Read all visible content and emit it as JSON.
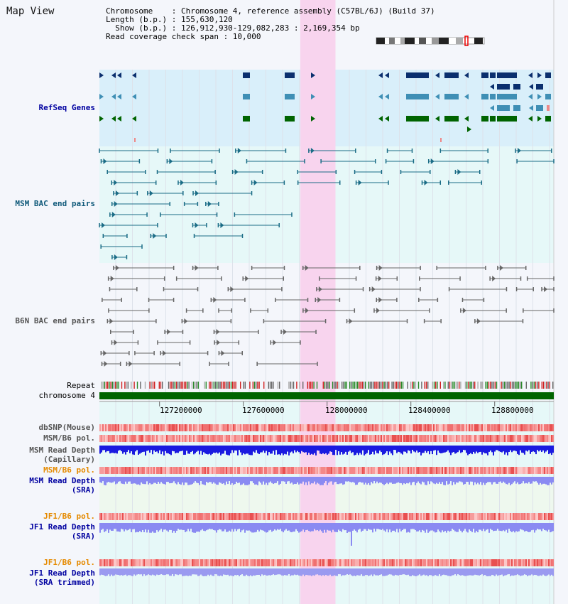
{
  "page": {
    "title": "Map View"
  },
  "info": {
    "line1": "Chromosome    : Chromosome 4, reference assembly (C57BL/6J) (Build 37)",
    "line2": "Length (b.p.) : 155,630,120",
    "line3": "  Show (b.p.) : 126,912,930-129,082,283 : 2,169,354 bp",
    "line4": "Read coverage check span : 10,000"
  },
  "view": {
    "start": 126912930,
    "end": 129082283,
    "highlight_start": 127872000,
    "highlight_end": 128040000
  },
  "tracks": {
    "refseq": "RefSeq Genes",
    "msm_bac": "MSM BAC end pairs",
    "b6n_bac": "B6N BAC end pairs",
    "repeat": "Repeat",
    "chromosome": "chromosome 4",
    "dbsnp": "dbSNP(Mouse)",
    "msm_b6_pol_1": "MSM/B6 pol.",
    "msm_read_depth_cap_1": "MSM Read Depth",
    "msm_read_depth_cap_2": "(Capillary)",
    "msm_b6_pol_2": "MSM/B6 pol.",
    "msm_read_depth_sra_1": "MSM Read Depth",
    "msm_read_depth_sra_2": "(SRA)",
    "jf1_b6_pol_1": "JF1/B6 pol.",
    "jf1_read_depth_sra_1": "JF1 Read Depth",
    "jf1_read_depth_sra_2": "(SRA)",
    "jf1_b6_pol_2": "JF1/B6 pol.",
    "jf1_read_depth_trim_1": "JF1 Read Depth",
    "jf1_read_depth_trim_2": "(SRA trimmed)"
  },
  "axis": {
    "ticks": [
      "127200000",
      "127600000",
      "128000000",
      "128400000",
      "128800000"
    ]
  },
  "colors": {
    "refseq_dark": "#0b2f6e",
    "refseq_mid": "#3f8fb5",
    "refseq_green": "#006400",
    "msm_bac": "#1a6c86",
    "b6n_bac": "#666666",
    "chromosome": "#006400",
    "highlight": "#f8d4ee",
    "depth_blue": "#1a1ae0",
    "depth_light": "#8a8af2",
    "label_blue": "#0000a0",
    "label_teal": "#105a7a",
    "label_orange": "#e58a00"
  }
}
